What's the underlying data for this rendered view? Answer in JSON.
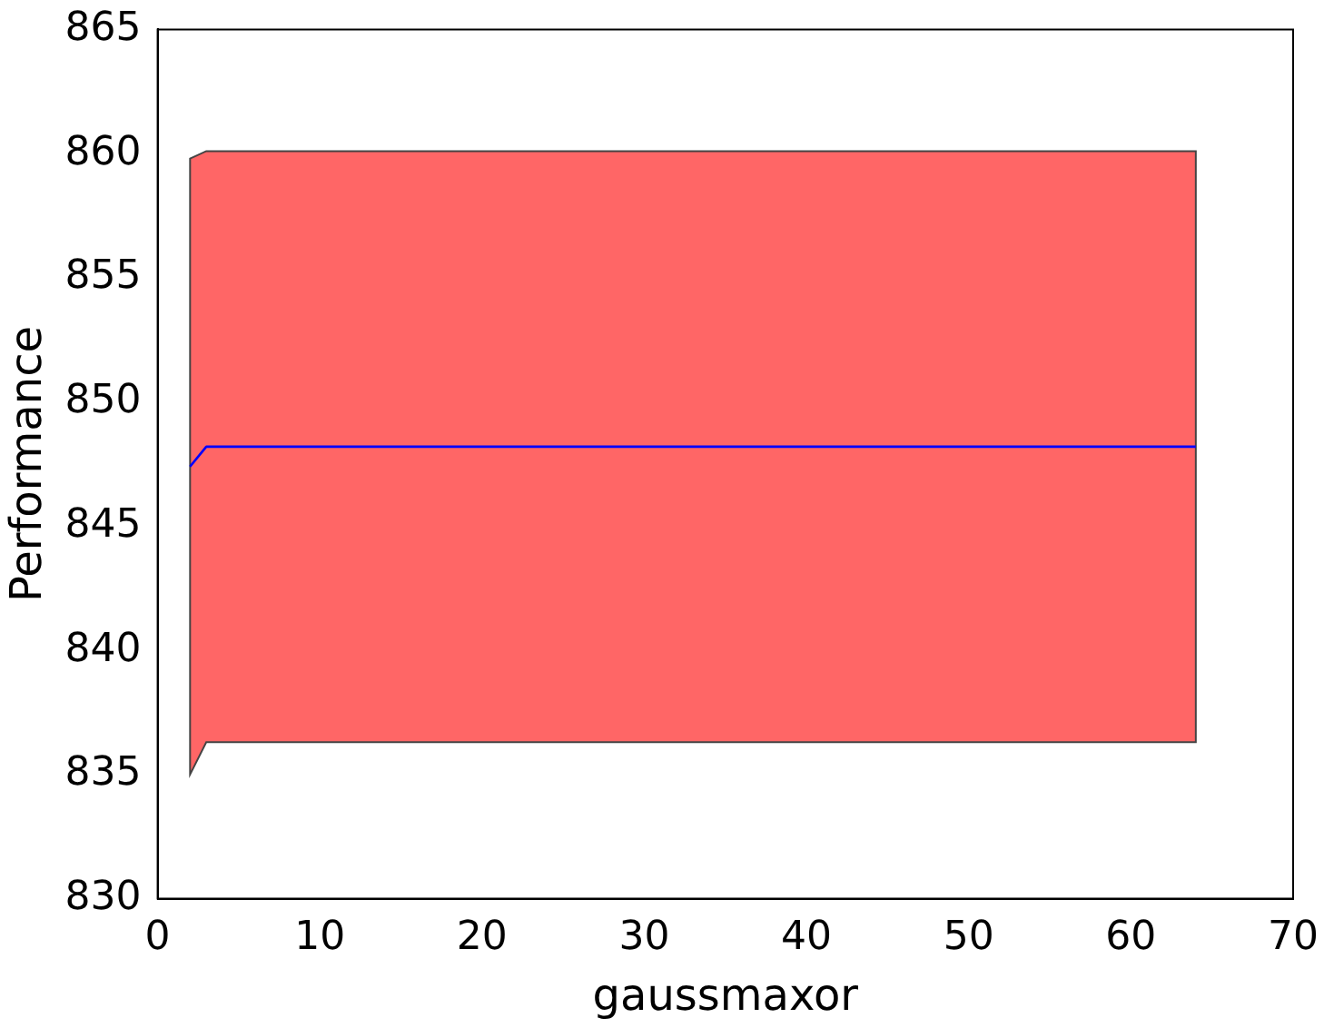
{
  "chart_data": {
    "type": "line",
    "xlabel": "gaussmaxor",
    "ylabel": "Performance",
    "x": [
      2,
      3,
      64
    ],
    "series": [
      {
        "color": "#0000ff",
        "values": [
          847.4,
          848.2,
          848.2
        ],
        "lower": [
          835.0,
          836.3,
          836.3
        ],
        "upper": [
          859.8,
          860.1,
          860.1
        ]
      }
    ],
    "xlim": [
      0,
      70
    ],
    "xticks": [
      0,
      10,
      20,
      30,
      40,
      50,
      60,
      70
    ],
    "ylim": [
      830,
      865
    ],
    "yticks": [
      830,
      835,
      840,
      845,
      850,
      855,
      860,
      865
    ],
    "grid": false,
    "legend": false,
    "marker": "none",
    "line_style": "solid"
  }
}
